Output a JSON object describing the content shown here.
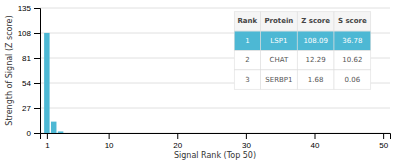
{
  "chart_data": {
    "type": "bar",
    "x": [
      1,
      2,
      3,
      4,
      5,
      6,
      7,
      8,
      9,
      10,
      11,
      12,
      13,
      14,
      15,
      16,
      17,
      18,
      19,
      20,
      21,
      22,
      23,
      24,
      25,
      26,
      27,
      28,
      29,
      30,
      31,
      32,
      33,
      34,
      35,
      36,
      37,
      38,
      39,
      40,
      41,
      42,
      43,
      44,
      45,
      46,
      47,
      48,
      49,
      50
    ],
    "values": [
      108.09,
      12.29,
      1.68,
      0,
      0,
      0,
      0,
      0,
      0,
      0,
      0,
      0,
      0,
      0,
      0,
      0,
      0,
      0,
      0,
      0,
      0,
      0,
      0,
      0,
      0,
      0,
      0,
      0,
      0,
      0,
      0,
      0,
      0,
      0,
      0,
      0,
      0,
      0,
      0,
      0,
      0,
      0,
      0,
      0,
      0,
      0,
      0,
      0,
      0,
      0
    ],
    "color": "#4db8d4",
    "xlim": [
      0,
      51
    ],
    "xticks": [
      1,
      10,
      20,
      30,
      40,
      50
    ],
    "ylim": [
      0,
      135
    ],
    "yticks": [
      0,
      27,
      54,
      81,
      108,
      135
    ],
    "xlabel": "Signal Rank (Top 50)",
    "ylabel": "Strength of Signal (Z score)",
    "grid": true,
    "table": {
      "columns": [
        "Rank",
        "Protein",
        "Z score",
        "S score"
      ],
      "rows": [
        [
          "1",
          "LSP1",
          "108.09",
          "36.78"
        ],
        [
          "2",
          "CHAT",
          "12.29",
          "10.62"
        ],
        [
          "3",
          "SERBP1",
          "1.68",
          "0.06"
        ]
      ]
    }
  }
}
